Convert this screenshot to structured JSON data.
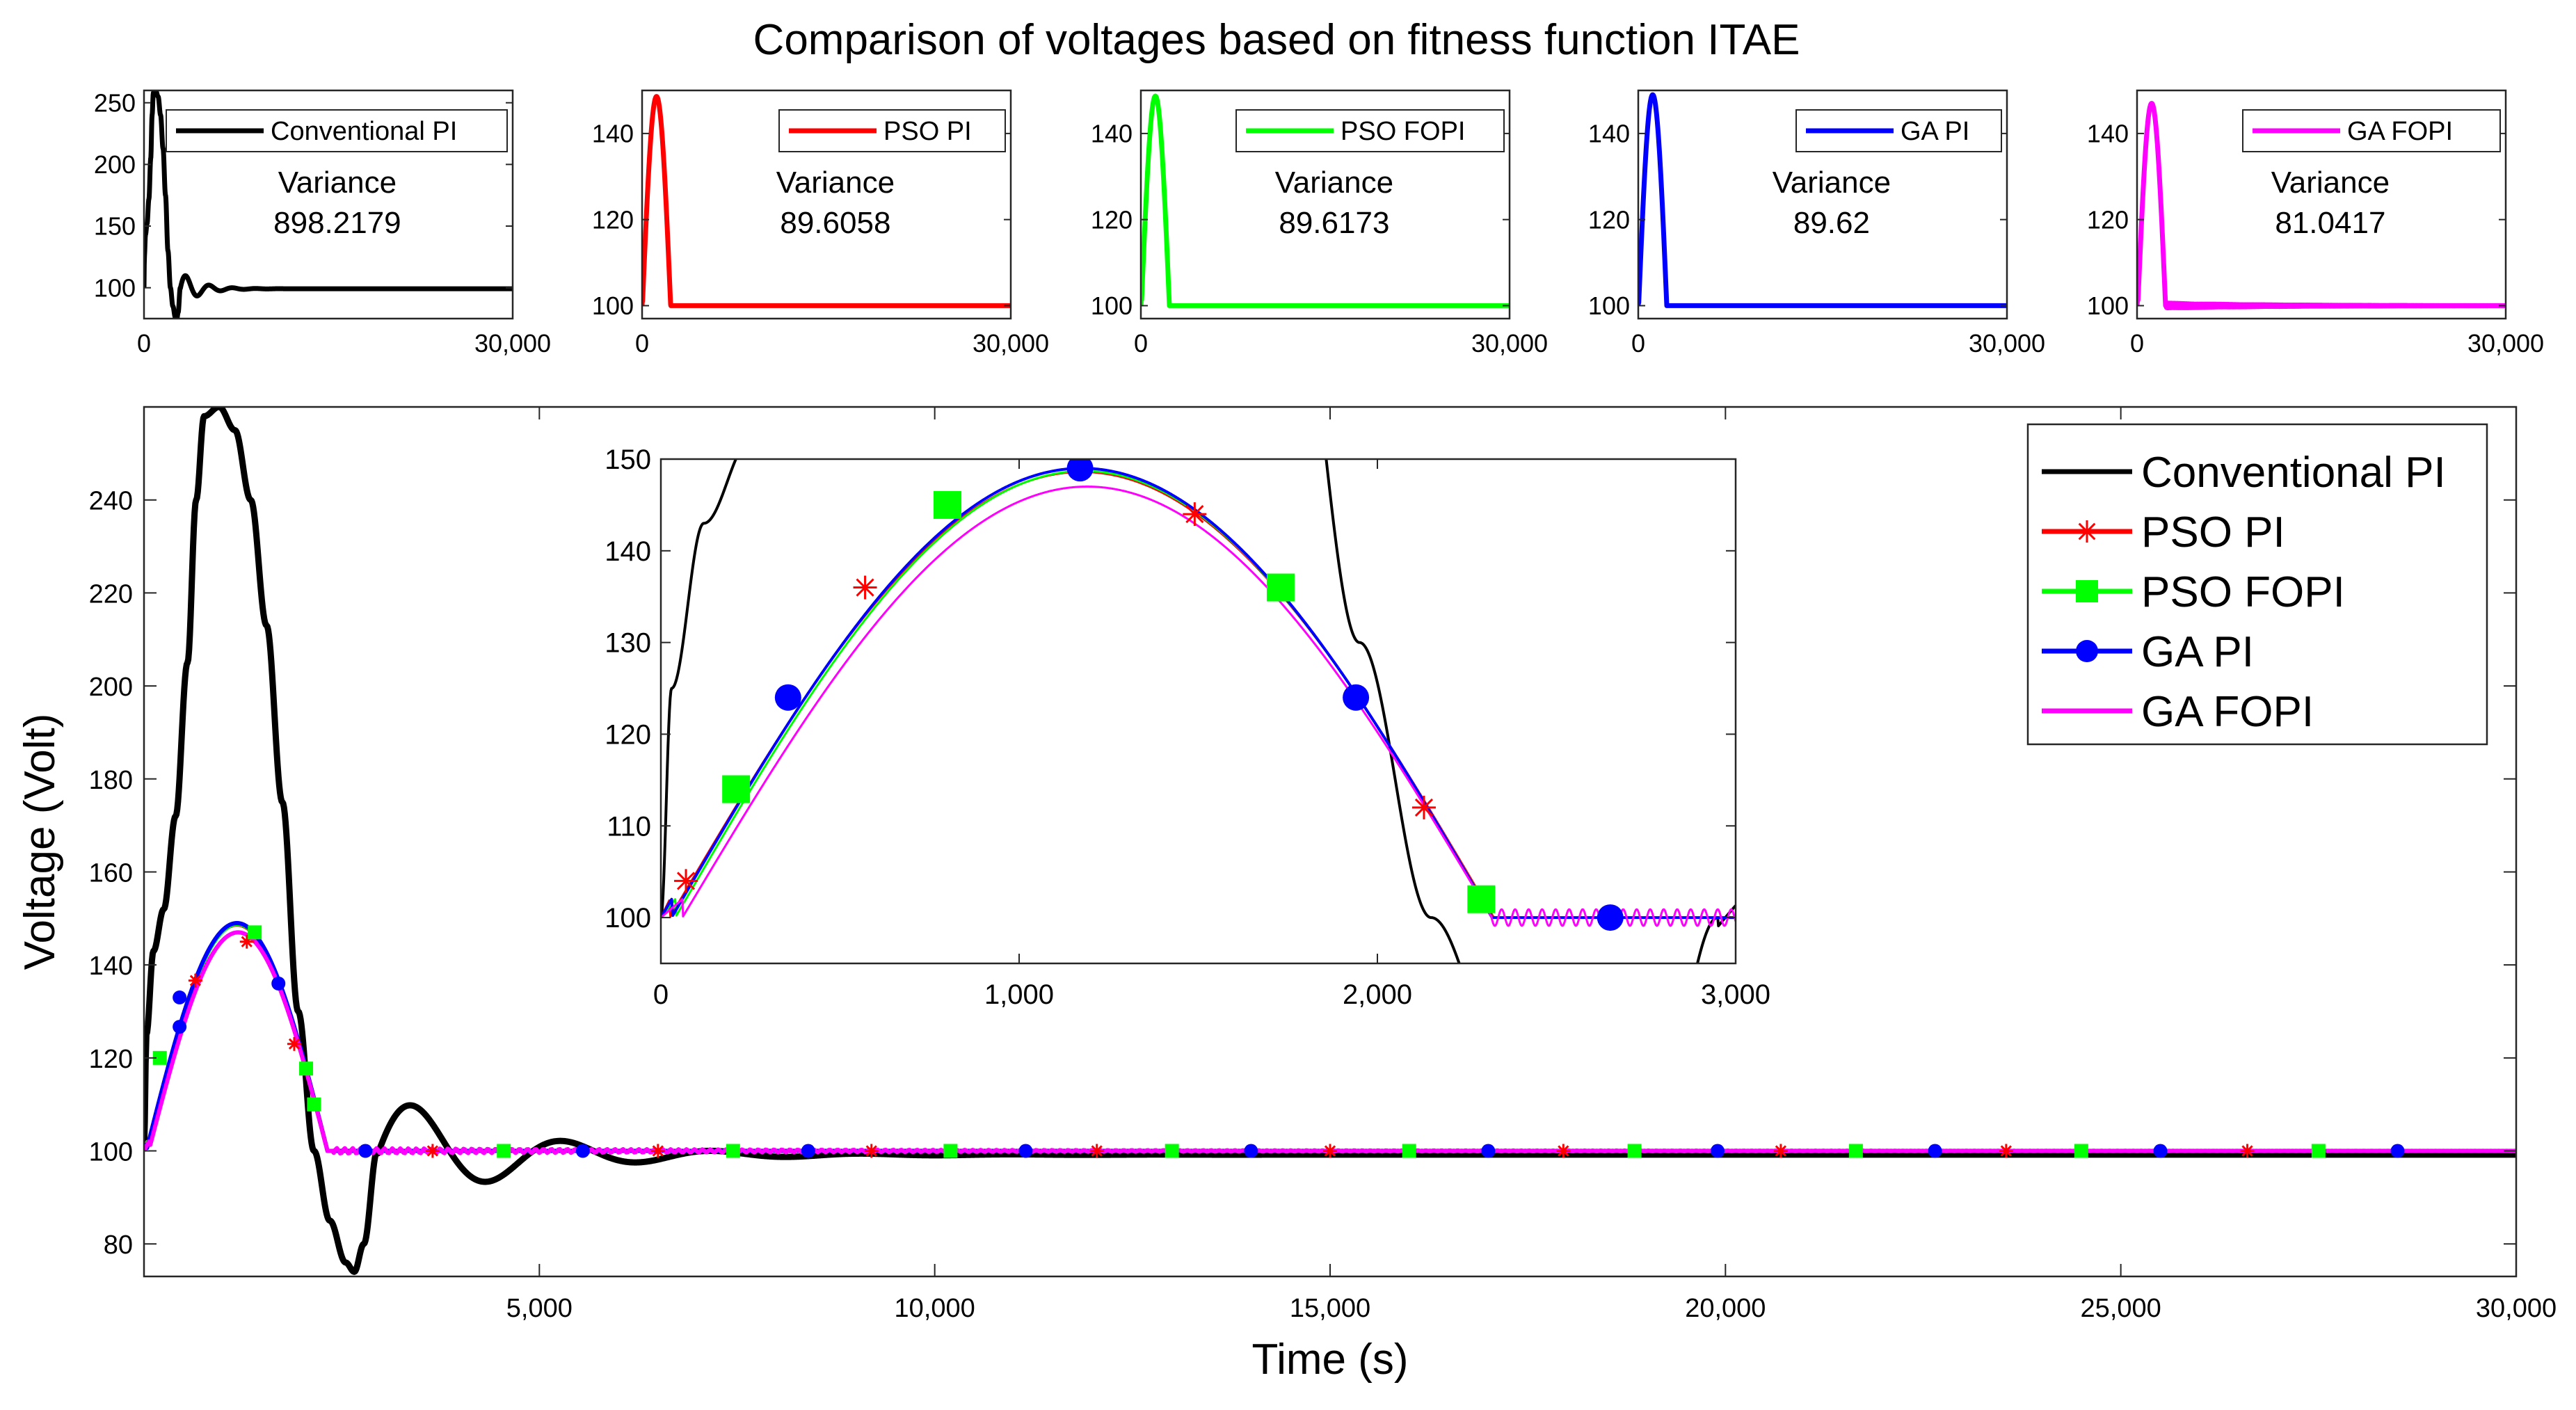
{
  "title": "Comparison of voltages based on fitness function ITAE",
  "colors": {
    "conventional": "#000000",
    "pso_pi": "#ff0000",
    "pso_fopi": "#00ff00",
    "ga_pi": "#0000ff",
    "ga_fopi": "#ff00ff"
  },
  "chart_data": [
    {
      "id": "small-conventional",
      "type": "line",
      "legend": "Conventional PI",
      "variance_label": "Variance",
      "variance": "898.2179",
      "xlim": [
        0,
        30000
      ],
      "ylim": [
        75,
        260
      ],
      "xticks": [
        0,
        30000
      ],
      "xtick_labels": [
        "0",
        "30,000"
      ],
      "yticks": [
        100,
        150,
        200,
        250
      ],
      "ytick_labels": [
        "100",
        "150",
        "200",
        "250"
      ]
    },
    {
      "id": "small-pso-pi",
      "type": "line",
      "legend": "PSO PI",
      "variance_label": "Variance",
      "variance": "89.6058",
      "xlim": [
        0,
        30000
      ],
      "ylim": [
        97,
        150
      ],
      "xticks": [
        0,
        30000
      ],
      "xtick_labels": [
        "0",
        "30,000"
      ],
      "yticks": [
        100,
        120,
        140
      ],
      "ytick_labels": [
        "100",
        "120",
        "140"
      ]
    },
    {
      "id": "small-pso-fopi",
      "type": "line",
      "legend": "PSO FOPI",
      "variance_label": "Variance",
      "variance": "89.6173",
      "xlim": [
        0,
        30000
      ],
      "ylim": [
        97,
        150
      ],
      "xticks": [
        0,
        30000
      ],
      "xtick_labels": [
        "0",
        "30,000"
      ],
      "yticks": [
        100,
        120,
        140
      ],
      "ytick_labels": [
        "100",
        "120",
        "140"
      ]
    },
    {
      "id": "small-ga-pi",
      "type": "line",
      "legend": "GA PI",
      "variance_label": "Variance",
      "variance": "89.62",
      "xlim": [
        0,
        30000
      ],
      "ylim": [
        97,
        150
      ],
      "xticks": [
        0,
        30000
      ],
      "xtick_labels": [
        "0",
        "30,000"
      ],
      "yticks": [
        100,
        120,
        140
      ],
      "ytick_labels": [
        "100",
        "120",
        "140"
      ]
    },
    {
      "id": "small-ga-fopi",
      "type": "line",
      "legend": "GA FOPI",
      "variance_label": "Variance",
      "variance": "81.0417",
      "xlim": [
        0,
        30000
      ],
      "ylim": [
        97,
        150
      ],
      "xticks": [
        0,
        30000
      ],
      "xtick_labels": [
        "0",
        "30,000"
      ],
      "yticks": [
        100,
        120,
        140
      ],
      "ytick_labels": [
        "100",
        "120",
        "140"
      ]
    },
    {
      "id": "main",
      "type": "line",
      "xlabel": "Time (s)",
      "ylabel": "Voltage (Volt)",
      "xlim": [
        0,
        30000
      ],
      "ylim": [
        73,
        260
      ],
      "xticks": [
        5000,
        10000,
        15000,
        20000,
        25000,
        30000
      ],
      "xtick_labels": [
        "5,000",
        "10,000",
        "15,000",
        "20,000",
        "25,000",
        "30,000"
      ],
      "yticks": [
        80,
        100,
        120,
        140,
        160,
        180,
        200,
        220,
        240
      ],
      "ytick_labels": [
        "80",
        "100",
        "120",
        "140",
        "160",
        "180",
        "200",
        "220",
        "240"
      ],
      "legend_position": "top-right",
      "series": [
        {
          "name": "Conventional PI",
          "marker": "none"
        },
        {
          "name": "PSO PI",
          "marker": "asterisk"
        },
        {
          "name": "PSO FOPI",
          "marker": "square"
        },
        {
          "name": "GA PI",
          "marker": "circle"
        },
        {
          "name": "GA FOPI",
          "marker": "none"
        }
      ],
      "markers_x": {
        "PSO PI": [
          650,
          3650,
          6500,
          9200,
          12050,
          15000,
          17950,
          20700,
          23550,
          26600
        ],
        "PSO FOPI": [
          2050,
          4550,
          7450,
          10200,
          13000,
          16000,
          18850,
          21650,
          24500,
          27500
        ],
        "GA PI": [
          450,
          2800,
          5550,
          8400,
          11150,
          14000,
          17000,
          19900,
          22650,
          25500,
          28500
        ]
      },
      "peak_points": {
        "PSO PI": [
          [
            1300,
            145
          ],
          [
            1900,
            123
          ]
        ],
        "PSO FOPI": [
          [
            200,
            120
          ],
          [
            1400,
            147
          ],
          [
            2150,
            110
          ]
        ],
        "GA PI": [
          [
            450,
            133
          ],
          [
            1700,
            136
          ]
        ]
      }
    },
    {
      "id": "inset",
      "type": "line",
      "xlim": [
        0,
        3000
      ],
      "ylim": [
        95,
        150
      ],
      "xticks": [
        0,
        1000,
        2000,
        3000
      ],
      "xtick_labels": [
        "0",
        "1,000",
        "2,000",
        "3,000"
      ],
      "yticks": [
        100,
        110,
        120,
        130,
        140,
        150
      ],
      "ytick_labels": [
        "100",
        "110",
        "120",
        "130",
        "140",
        "150"
      ],
      "markers": {
        "PSO PI": [
          [
            70,
            104
          ],
          [
            570,
            136
          ],
          [
            1490,
            144
          ],
          [
            2130,
            112
          ]
        ],
        "PSO FOPI": [
          [
            210,
            114
          ],
          [
            800,
            145
          ],
          [
            1730,
            136
          ],
          [
            2290,
            102
          ]
        ],
        "GA PI": [
          [
            355,
            124
          ],
          [
            1170,
            149
          ],
          [
            1940,
            124
          ],
          [
            2650,
            100
          ]
        ]
      }
    }
  ]
}
